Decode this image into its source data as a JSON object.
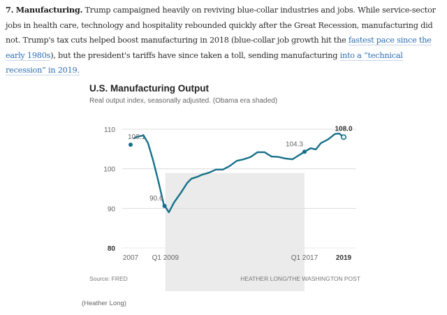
{
  "article": {
    "number": "7.",
    "heading": "Manufacturing.",
    "text_1": " Trump campaigned heavily on reviving blue-collar industries and jobs. While service-sector jobs in health care, technology and hospitality rebounded quickly after the Great Recession, manufacturing did not. Trump's tax cuts helped boost manufacturing in 2018 (blue-collar job growth hit the ",
    "link_1": "fastest pace since the early 1980s",
    "text_2": "), but the president's tariffs have since taken a toll, sending manufacturing ",
    "link_2": "into a “technical recession” in 2019.",
    "link_color": "#2f6fb3"
  },
  "caption": "(Heather Long)",
  "chart_data": {
    "type": "line",
    "title": "U.S. Manufacturing Output",
    "subtitle": "Real output index, seasonally adjusted. (Obama era shaded)",
    "xlabel": "",
    "ylabel": "",
    "source": "Source: FRED",
    "credit": "HEATHER LONG/THE WASHINGTON POST",
    "ylim": [
      80,
      110
    ],
    "xlim": [
      2007.0,
      2019.25
    ],
    "yticks": [
      110,
      100,
      90,
      80
    ],
    "xticks": [
      {
        "value": 2007.0,
        "label": "2007",
        "bold": false
      },
      {
        "value": 2009.0,
        "label": "Q1 2009",
        "bold": false
      },
      {
        "value": 2017.0,
        "label": "Q1 2017",
        "bold": false
      },
      {
        "value": 2019.25,
        "label": "2019",
        "bold": true
      }
    ],
    "grid": true,
    "shaded_region": {
      "label": "Obama era",
      "from": 2009.0,
      "to": 2017.0,
      "color": "#ebebeb"
    },
    "line_color": "#16708a",
    "series": [
      {
        "name": "Real output index",
        "x": [
          2007.2,
          2007.45,
          2007.75,
          2008.0,
          2008.3,
          2008.6,
          2008.9,
          2009.2,
          2009.5,
          2009.9,
          2010.25,
          2010.5,
          2010.85,
          2011.1,
          2011.5,
          2011.9,
          2012.3,
          2012.7,
          2013.1,
          2013.5,
          2013.9,
          2014.3,
          2014.7,
          2015.1,
          2015.5,
          2015.9,
          2016.3,
          2016.6,
          2017.0,
          2017.35,
          2017.65,
          2017.95,
          2018.35,
          2018.75,
          2019.0,
          2019.25
        ],
        "values": [
          107.7,
          108.2,
          108.4,
          106.5,
          102.0,
          96.8,
          91.1,
          89.0,
          91.5,
          94.0,
          96.4,
          97.5,
          98.0,
          98.5,
          99.0,
          99.8,
          99.8,
          100.7,
          102.0,
          102.4,
          103.0,
          104.2,
          104.2,
          103.1,
          103.0,
          102.6,
          102.4,
          103.2,
          104.3,
          105.2,
          104.9,
          106.5,
          107.4,
          108.8,
          108.9,
          108.0
        ]
      }
    ],
    "annotations": [
      {
        "x": 2007.0,
        "value": 106.1,
        "label": "106.1",
        "marker": "dot"
      },
      {
        "x": 2008.95,
        "value": 90.6,
        "label": "90.6",
        "marker": "dot"
      },
      {
        "x": 2017.0,
        "value": 104.3,
        "label": "104.3",
        "marker": "dot"
      },
      {
        "x": 2019.25,
        "value": 108.0,
        "label": "108.0",
        "marker": "open-circle",
        "bold": true
      }
    ]
  }
}
